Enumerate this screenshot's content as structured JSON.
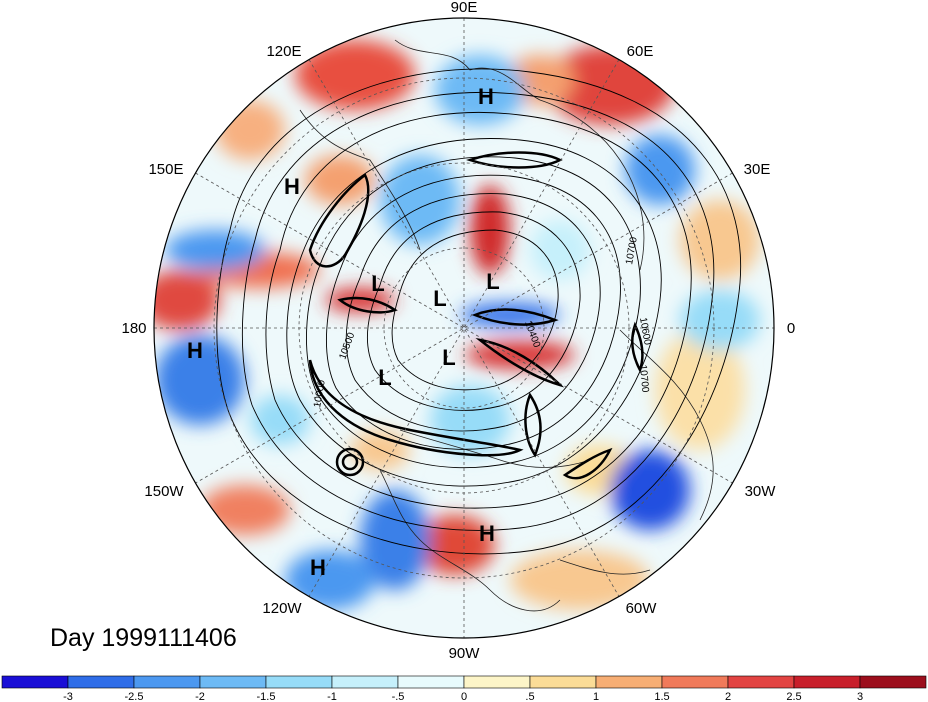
{
  "title": "Day 1999111406",
  "map": {
    "projection": "north polar stereographic",
    "longitude_labels": [
      "90E",
      "60E",
      "30E",
      "0",
      "30W",
      "60W",
      "90W",
      "120W",
      "150W",
      "180",
      "150E",
      "120E"
    ],
    "pressure_centers": [
      {
        "type": "H",
        "location": "Siberia / East Asia"
      },
      {
        "type": "H",
        "location": "Western Pacific"
      },
      {
        "type": "H",
        "location": "Central Pacific"
      },
      {
        "type": "H",
        "location": "Eastern Pacific near Mexico"
      },
      {
        "type": "H",
        "location": "Central America / Caribbean"
      },
      {
        "type": "L",
        "location": "Arctic"
      },
      {
        "type": "L",
        "location": "Arctic"
      },
      {
        "type": "L",
        "location": "Arctic"
      },
      {
        "type": "L",
        "location": "Arctic"
      },
      {
        "type": "L",
        "location": "Arctic"
      }
    ],
    "contour_labels": [
      "10700",
      "10600",
      "10700",
      "10400",
      "10500",
      "10000"
    ]
  },
  "colorbar": {
    "tick_labels": [
      "-3",
      "-2.5",
      "-2",
      "-1.5",
      "-1",
      "-.5",
      "0",
      ".5",
      "1",
      "1.5",
      "2",
      "2.5",
      "3"
    ],
    "colors": [
      "#1a0fd6",
      "#2f6de8",
      "#4c98f0",
      "#6dbaf5",
      "#97dcf8",
      "#c6f0fb",
      "#e8fbfd",
      "#fdf5c8",
      "#fbdc97",
      "#f7ae74",
      "#f07a5a",
      "#e24442",
      "#c81f2b",
      "#9c0e1c"
    ]
  }
}
